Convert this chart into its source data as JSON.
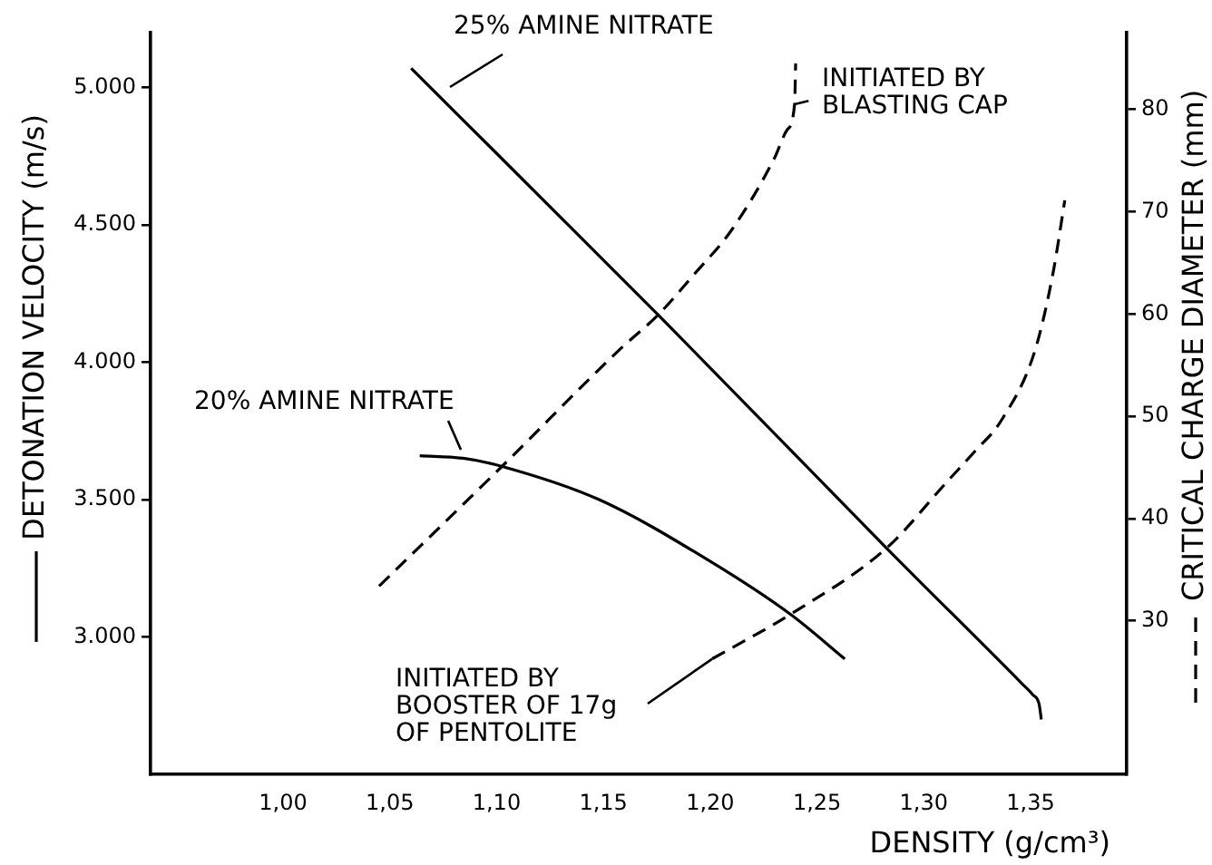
{
  "chart_data": {
    "type": "line",
    "xlabel": "DENSITY (g/cm³)",
    "ylabel": "DETONATION VELOCITY (m/s)",
    "y2label": "CRITICAL CHARGE DIAMETER (mm)",
    "xlim": [
      0.938,
      1.395
    ],
    "xticks": [
      {
        "value": 1.0,
        "label": "1,00"
      },
      {
        "value": 1.05,
        "label": "1,05"
      },
      {
        "value": 1.1,
        "label": "1,10"
      },
      {
        "value": 1.15,
        "label": "1,15"
      },
      {
        "value": 1.2,
        "label": "1,20"
      },
      {
        "value": 1.25,
        "label": "1,25"
      },
      {
        "value": 1.3,
        "label": "1,30"
      },
      {
        "value": 1.35,
        "label": "1,35"
      }
    ],
    "ylim": [
      2500,
      5200
    ],
    "yticks": [
      {
        "value": 3000,
        "label": "3.000"
      },
      {
        "value": 3500,
        "label": "3.500"
      },
      {
        "value": 4000,
        "label": "4.000"
      },
      {
        "value": 4500,
        "label": "4.500"
      },
      {
        "value": 5000,
        "label": "5.000"
      }
    ],
    "y2lim": [
      15,
      87.5
    ],
    "y2ticks": [
      30,
      40,
      50,
      60,
      70,
      80
    ],
    "marker": "none",
    "series": [
      {
        "name": "25% AMINE NITRATE",
        "color": "#000000",
        "line_style": "solid",
        "x": [
          1.06,
          1.176,
          1.283,
          1.346,
          1.351,
          1.354,
          1.355
        ],
        "values": [
          5070,
          4170,
          3320,
          2830,
          2790,
          2755,
          2700
        ]
      },
      {
        "name": "20% AMINE NITRATE",
        "color": "#000000",
        "line_style": "solid",
        "x": [
          1.064,
          1.085,
          1.103,
          1.148,
          1.199,
          1.238,
          1.263
        ],
        "values": [
          3660,
          3650,
          3620,
          3500,
          3280,
          3080,
          2920
        ]
      },
      {
        "name": "INITIATED BY BLASTING CAP",
        "color": "#000000",
        "line_style": "dashed",
        "axis": "y2",
        "x": [
          1.045,
          1.103,
          1.157,
          1.176,
          1.193,
          1.21,
          1.23,
          1.236,
          1.2395,
          1.24
        ],
        "values": [
          33.4,
          45.2,
          56.4,
          60.0,
          64.0,
          68.2,
          75.2,
          78.0,
          80.5,
          84.5
        ]
      },
      {
        "name": "INITIATED BY BOOSTER OF 17g OF PENTOLITE",
        "color": "#000000",
        "line_style": "dashed",
        "axis": "y2",
        "x": [
          1.201,
          1.238,
          1.283,
          1.31,
          1.324,
          1.336,
          1.352,
          1.3605,
          1.366
        ],
        "values": [
          26.3,
          30.7,
          37.2,
          43.4,
          46.6,
          49.5,
          56.4,
          64.0,
          71.1
        ]
      }
    ]
  }
}
